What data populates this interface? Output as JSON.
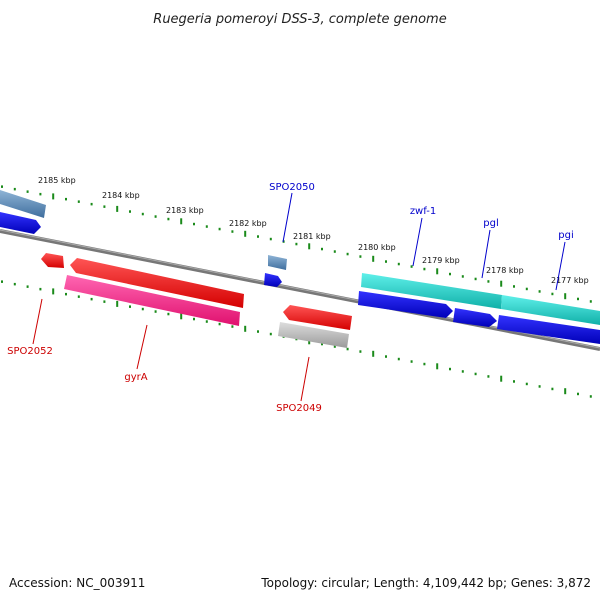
{
  "title": "Ruegeria pomeroyi DSS-3, complete genome",
  "footer": {
    "accession": "Accession: NC_003911",
    "topology": "Topology: circular; Length: 4,109,442 bp; Genes: 3,872"
  },
  "colors": {
    "backbone": "#808080",
    "tick": "#1a8a1a",
    "forward_label": "#0000cc",
    "reverse_label": "#cc0000"
  },
  "kbp_labels": [
    "2185 kbp",
    "2184 kbp",
    "2183 kbp",
    "2182 kbp",
    "2181 kbp",
    "2180 kbp",
    "2179 kbp",
    "2178 kbp",
    "2177 kbp"
  ],
  "gene_labels": {
    "spo2050": "SPO2050",
    "zwf1": "zwf-1",
    "pgl": "pgl",
    "pgi": "pgi",
    "spo2052": "SPO2052",
    "gyra": "gyrA",
    "spo2049": "SPO2049"
  }
}
